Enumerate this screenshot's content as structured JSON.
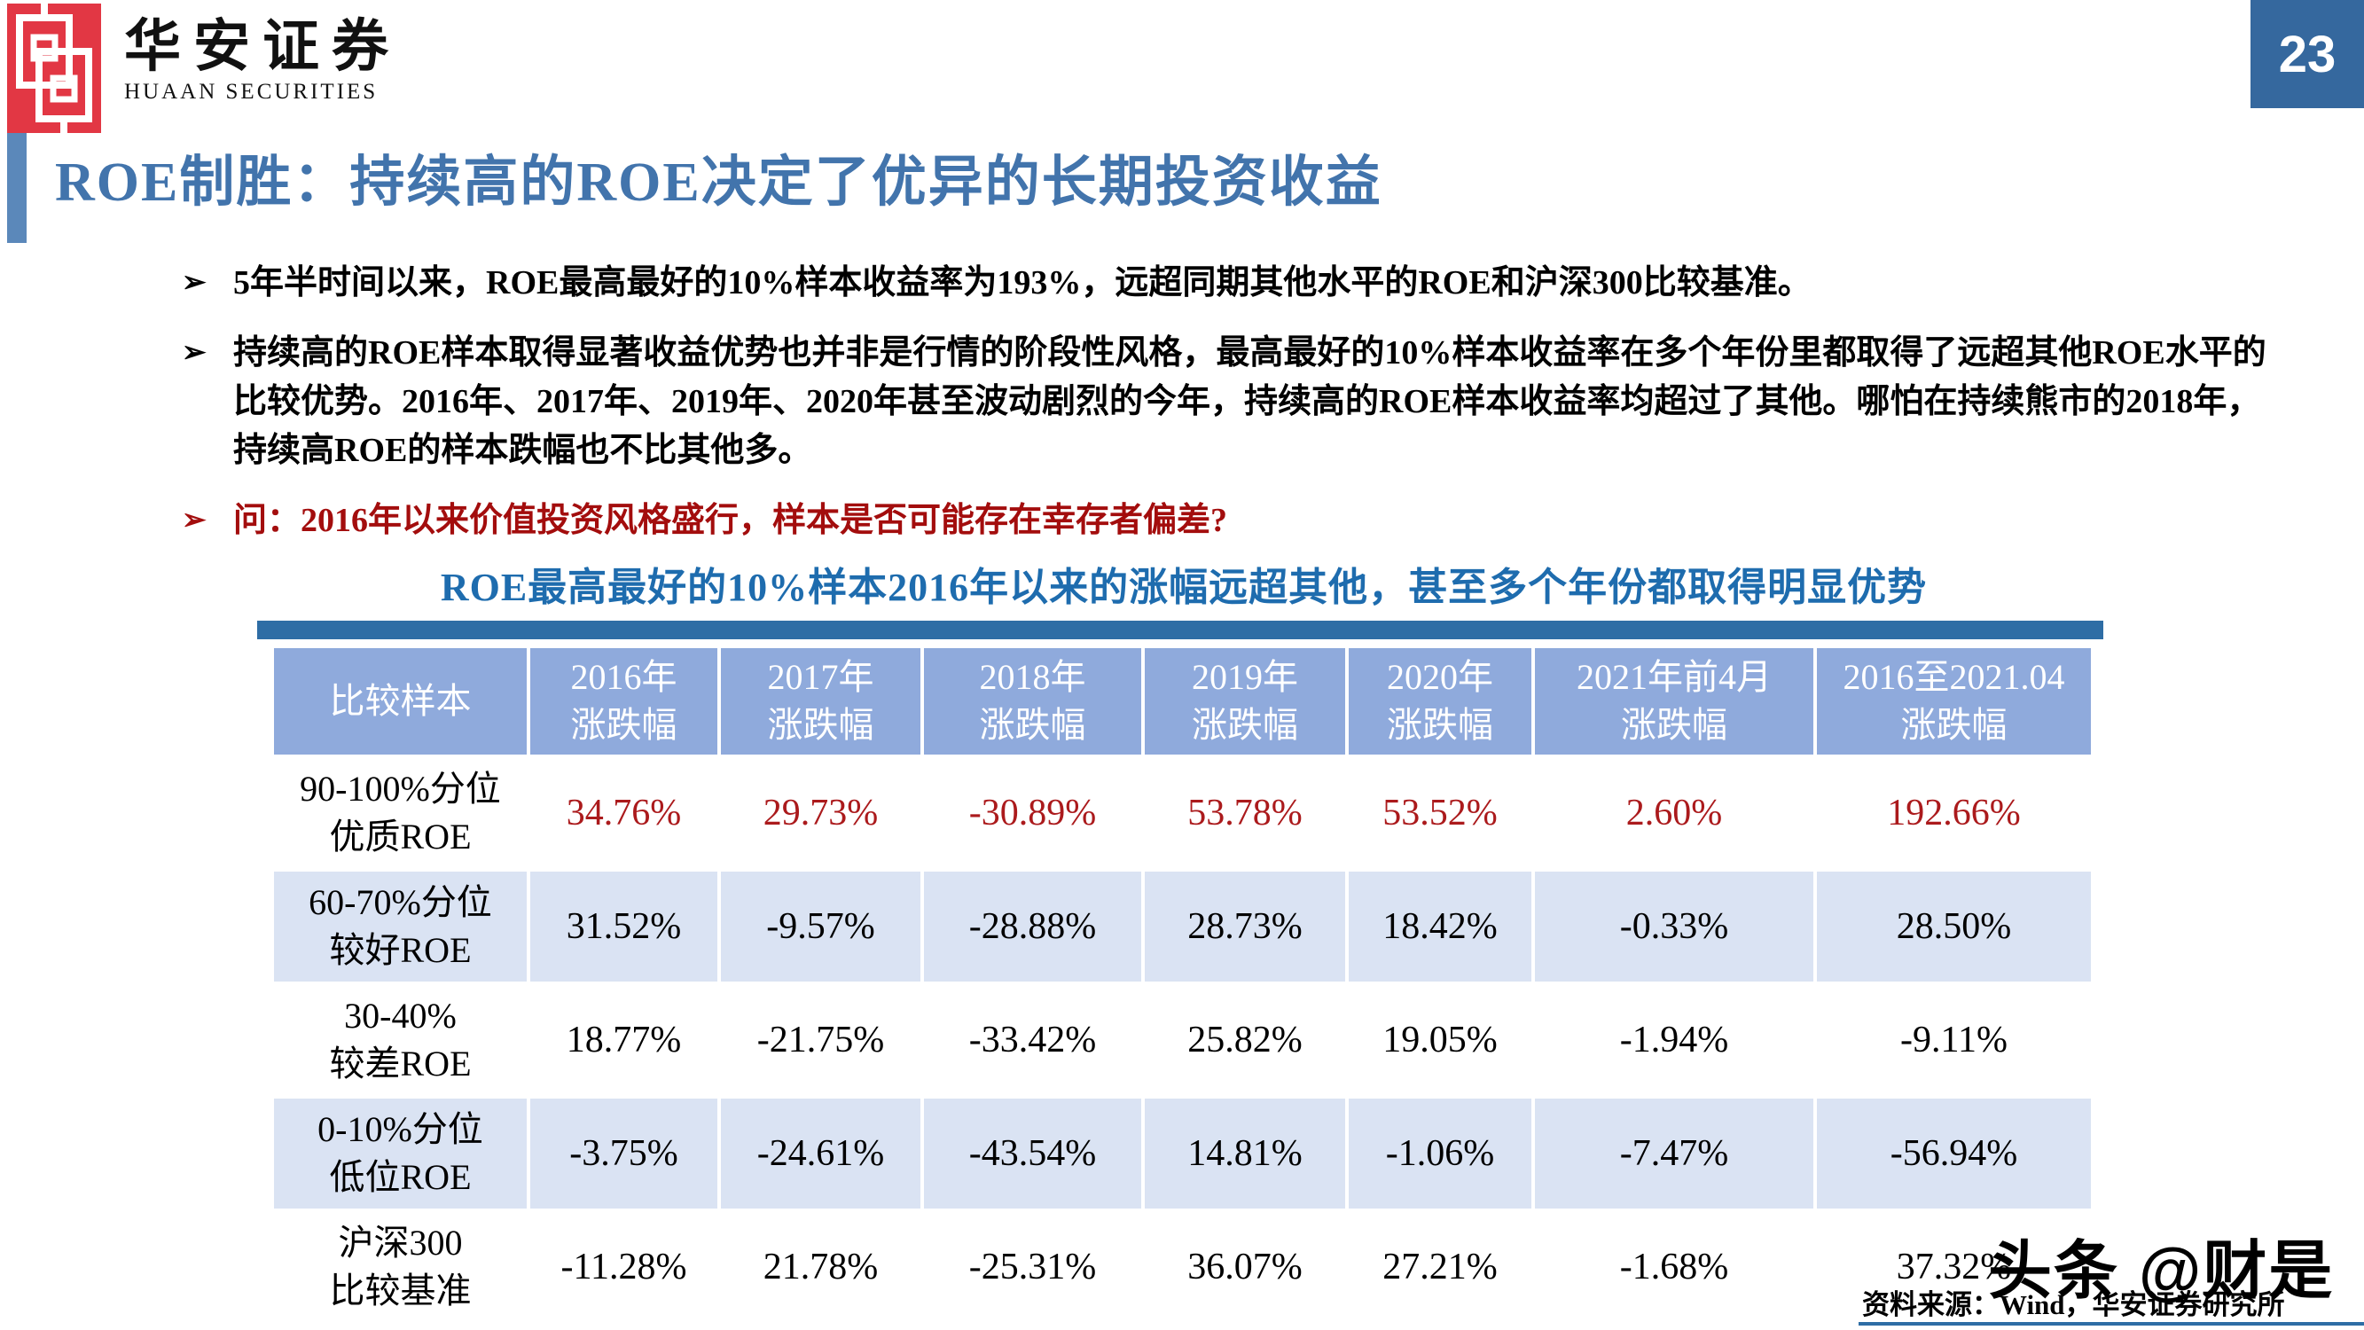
{
  "page_badge": "23",
  "logo": {
    "brand_cn": "华安证券",
    "brand_en": "HUAAN SECURITIES",
    "mark": "huaan-knot-logo"
  },
  "title": "ROE制胜：持续高的ROE决定了优异的长期投资收益",
  "bullets": [
    {
      "marker": "➢",
      "color": "black",
      "text": "5年半时间以来，ROE最高最好的10%样本收益率为193%，远超同期其他水平的ROE和沪深300比较基准。"
    },
    {
      "marker": "➢",
      "color": "black",
      "text": "持续高的ROE样本取得显著收益优势也并非是行情的阶段性风格，最高最好的10%样本收益率在多个年份里都取得了远超其他ROE水平的比较优势。2016年、2017年、2019年、2020年甚至波动剧烈的今年，持续高的ROE样本收益率均超过了其他。哪怕在持续熊市的2018年，持续高ROE的样本跌幅也不比其他多。"
    },
    {
      "marker": "➢",
      "color": "red",
      "text": "问：2016年以来价值投资风格盛行，样本是否可能存在幸存者偏差?"
    }
  ],
  "table_title": "ROE最高最好的10%样本2016年以来的涨幅远超其他，甚至多个年份都取得明显优势",
  "chart_data": {
    "type": "table",
    "columns": [
      "比较样本",
      "2016年\n涨跌幅",
      "2017年\n涨跌幅",
      "2018年\n涨跌幅",
      "2019年\n涨跌幅",
      "2020年\n涨跌幅",
      "2021年前4月\n涨跌幅",
      "2016至2021.04\n涨跌幅"
    ],
    "rows": [
      {
        "label": "90-100%分位\n优质ROE",
        "highlight": true,
        "striped": false,
        "values": [
          "34.76%",
          "29.73%",
          "-30.89%",
          "53.78%",
          "53.52%",
          "2.60%",
          "192.66%"
        ]
      },
      {
        "label": "60-70%分位\n较好ROE",
        "highlight": false,
        "striped": true,
        "values": [
          "31.52%",
          "-9.57%",
          "-28.88%",
          "28.73%",
          "18.42%",
          "-0.33%",
          "28.50%"
        ]
      },
      {
        "label": "30-40%\n较差ROE",
        "highlight": false,
        "striped": false,
        "values": [
          "18.77%",
          "-21.75%",
          "-33.42%",
          "25.82%",
          "19.05%",
          "-1.94%",
          "-9.11%"
        ]
      },
      {
        "label": "0-10%分位\n低位ROE",
        "highlight": false,
        "striped": true,
        "values": [
          "-3.75%",
          "-24.61%",
          "-43.54%",
          "14.81%",
          "-1.06%",
          "-7.47%",
          "-56.94%"
        ]
      },
      {
        "label": "沪深300\n比较基准",
        "highlight": false,
        "striped": false,
        "values": [
          "-11.28%",
          "21.78%",
          "-25.31%",
          "36.07%",
          "27.21%",
          "-1.68%",
          "37.32%"
        ]
      }
    ]
  },
  "source_note": "资料来源：Wind，华安证券研究所",
  "watermark": "头条 @财是",
  "colors": {
    "title_blue": "#4274AC",
    "table_title_blue": "#1E6CAE",
    "divider_blue": "#2E6DA5",
    "header_cell_blue": "#8FAADC",
    "striped_row_blue": "#DAE3F3",
    "highlight_red": "#AB1A1C",
    "question_red": "#A30D0D",
    "badge_blue": "#35689E",
    "logo_red": "#E23744"
  }
}
